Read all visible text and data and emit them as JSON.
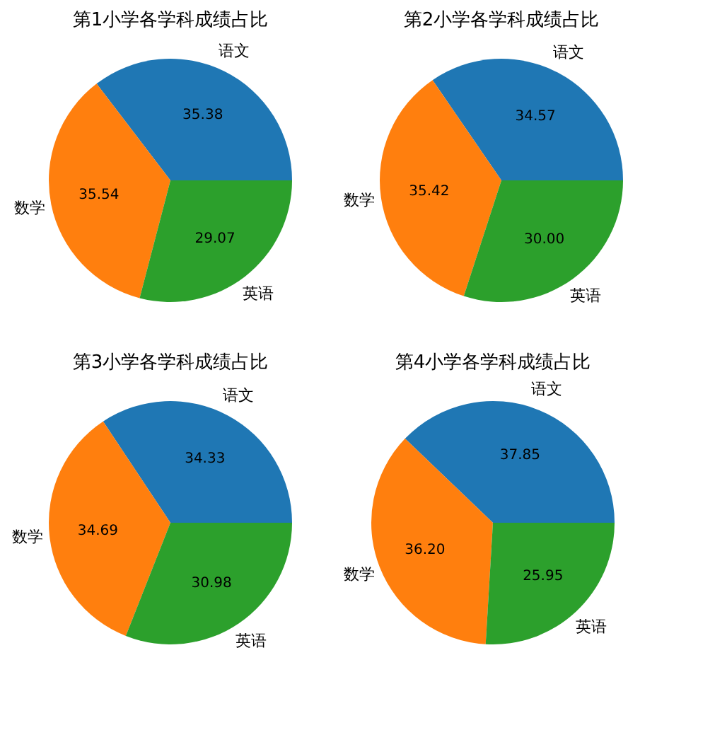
{
  "chart_data": [
    {
      "type": "pie",
      "title": "第1小学各学科成绩占比",
      "categories": [
        "语文",
        "数学",
        "英语"
      ],
      "values": [
        35.38,
        35.54,
        29.07
      ],
      "colors": [
        "#1f77b4",
        "#ff7f0e",
        "#2ca02c"
      ],
      "value_labels": [
        "35.38",
        "35.54",
        "29.07"
      ]
    },
    {
      "type": "pie",
      "title": "第2小学各学科成绩占比",
      "categories": [
        "语文",
        "数学",
        "英语"
      ],
      "values": [
        34.57,
        35.42,
        30.0
      ],
      "colors": [
        "#1f77b4",
        "#ff7f0e",
        "#2ca02c"
      ],
      "value_labels": [
        "34.57",
        "35.42",
        "30.00"
      ]
    },
    {
      "type": "pie",
      "title": "第3小学各学科成绩占比",
      "categories": [
        "语文",
        "数学",
        "英语"
      ],
      "values": [
        34.33,
        34.69,
        30.98
      ],
      "colors": [
        "#1f77b4",
        "#ff7f0e",
        "#2ca02c"
      ],
      "value_labels": [
        "34.33",
        "34.69",
        "30.98"
      ]
    },
    {
      "type": "pie",
      "title": "第4小学各学科成绩占比",
      "categories": [
        "语文",
        "数学",
        "英语"
      ],
      "values": [
        37.85,
        36.2,
        25.95
      ],
      "colors": [
        "#1f77b4",
        "#ff7f0e",
        "#2ca02c"
      ],
      "value_labels": [
        "37.85",
        "36.20",
        "25.95"
      ]
    }
  ]
}
